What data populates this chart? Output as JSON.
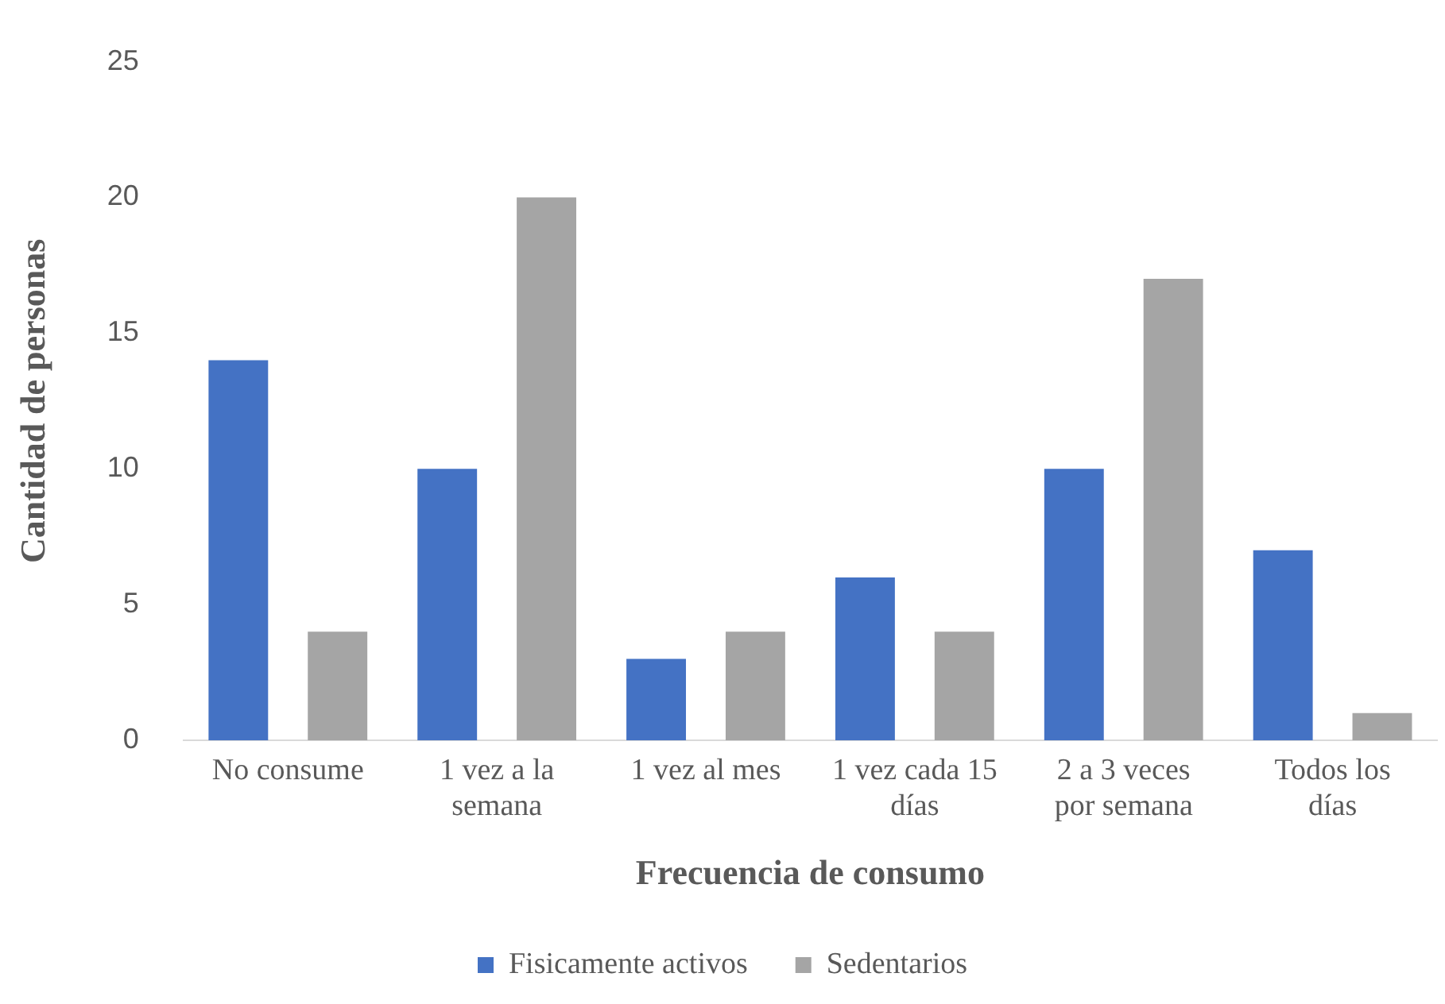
{
  "chart_data": {
    "type": "bar",
    "xlabel": "Frecuencia de consumo",
    "ylabel": "Cantidad de personas",
    "categories": [
      "No consume",
      "1 vez a la semana",
      "1 vez al mes",
      "1 vez cada 15 días",
      "2 a 3 veces por semana",
      "Todos los días"
    ],
    "series": [
      {
        "name": "Fisicamente activos",
        "color": "#4472c4",
        "values": [
          14,
          10,
          3,
          6,
          10,
          7
        ]
      },
      {
        "name": "Sedentarios",
        "color": "#a5a5a5",
        "values": [
          4,
          20,
          4,
          4,
          17,
          1
        ]
      }
    ],
    "ylim": [
      0,
      25
    ],
    "yticks": [
      0,
      5,
      10,
      15,
      20,
      25
    ],
    "grid": false,
    "legend": "bottom"
  }
}
